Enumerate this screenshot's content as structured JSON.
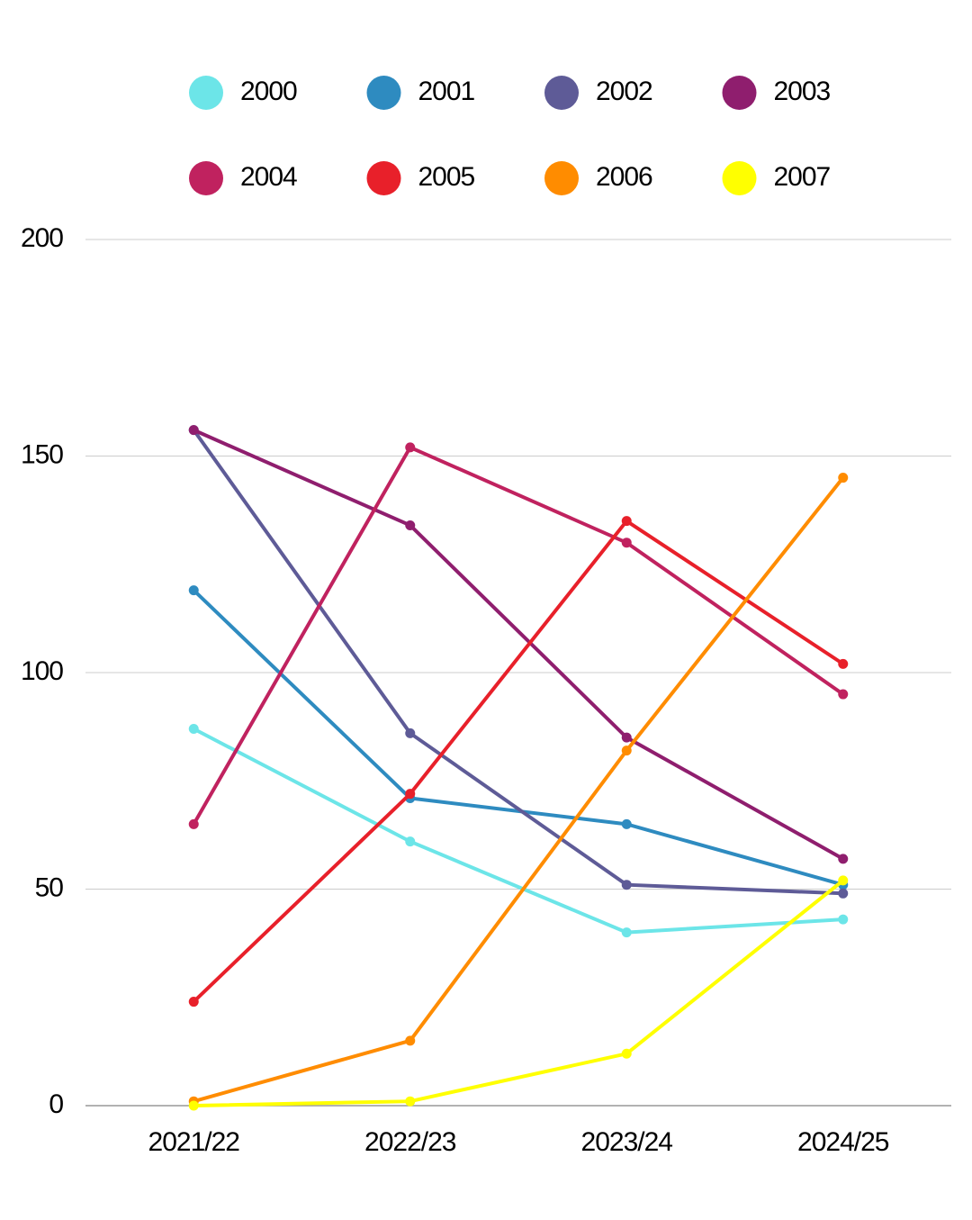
{
  "chart_data": {
    "type": "line",
    "categories": [
      "2021/22",
      "2022/23",
      "2023/24",
      "2024/25"
    ],
    "series": [
      {
        "name": "2000",
        "color": "#6ce5e8",
        "values": [
          87,
          61,
          40,
          43
        ]
      },
      {
        "name": "2001",
        "color": "#2e8bc0",
        "values": [
          119,
          71,
          65,
          51
        ]
      },
      {
        "name": "2002",
        "color": "#5e5b97",
        "values": [
          156,
          86,
          51,
          49
        ]
      },
      {
        "name": "2003",
        "color": "#8f1e6e",
        "values": [
          156,
          134,
          85,
          57
        ]
      },
      {
        "name": "2004",
        "color": "#c0225f",
        "values": [
          65,
          152,
          130,
          95
        ]
      },
      {
        "name": "2005",
        "color": "#e8202a",
        "values": [
          24,
          72,
          135,
          102
        ]
      },
      {
        "name": "2006",
        "color": "#ff8c00",
        "values": [
          1,
          15,
          82,
          145
        ]
      },
      {
        "name": "2007",
        "color": "#ffff00",
        "values": [
          0,
          1,
          12,
          52
        ]
      }
    ],
    "ylim": [
      0,
      200
    ],
    "yticks": [
      0,
      50,
      100,
      150,
      200
    ],
    "grid": true,
    "legend": "top"
  }
}
